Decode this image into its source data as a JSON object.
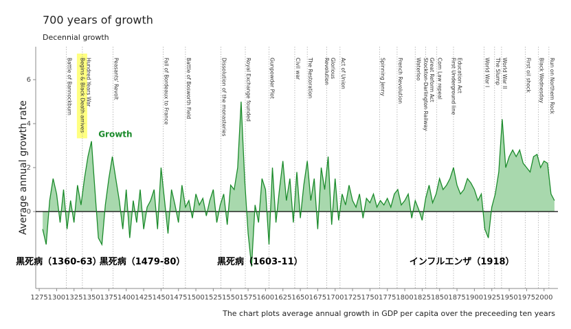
{
  "chart_data": {
    "type": "area-line",
    "title": "700 years of growth",
    "subtitle": "Decennial growth",
    "y_label": "Average annual growth rate",
    "caption": "The chart plots average annual growth in GDP per capita over the preceeding ten years",
    "xlim": [
      1270,
      2020
    ],
    "ylim": [
      -3.5,
      7.5
    ],
    "xticks": [
      1275,
      1300,
      1325,
      1350,
      1375,
      1400,
      1425,
      1450,
      1475,
      1500,
      1525,
      1550,
      1575,
      1600,
      1625,
      1650,
      1675,
      1700,
      1725,
      1750,
      1775,
      1800,
      1825,
      1850,
      1875,
      1900,
      1925,
      1950,
      1975,
      2000
    ],
    "yticks": [
      0,
      2,
      4,
      6
    ],
    "series": [
      {
        "name": "Growth",
        "color": "#1a8a2a",
        "fill": "#a8d8ad",
        "x": [
          1280,
          1285,
          1290,
          1295,
          1300,
          1305,
          1310,
          1315,
          1320,
          1325,
          1330,
          1335,
          1340,
          1345,
          1350,
          1355,
          1360,
          1365,
          1370,
          1375,
          1380,
          1385,
          1390,
          1395,
          1400,
          1405,
          1410,
          1415,
          1420,
          1425,
          1430,
          1435,
          1440,
          1445,
          1450,
          1455,
          1460,
          1465,
          1470,
          1475,
          1480,
          1485,
          1490,
          1495,
          1500,
          1505,
          1510,
          1515,
          1520,
          1525,
          1530,
          1535,
          1540,
          1545,
          1550,
          1555,
          1560,
          1565,
          1570,
          1575,
          1580,
          1585,
          1590,
          1595,
          1600,
          1605,
          1610,
          1615,
          1620,
          1625,
          1630,
          1635,
          1640,
          1645,
          1650,
          1655,
          1660,
          1665,
          1670,
          1675,
          1680,
          1685,
          1690,
          1695,
          1700,
          1705,
          1710,
          1715,
          1720,
          1725,
          1730,
          1735,
          1740,
          1745,
          1750,
          1755,
          1760,
          1765,
          1770,
          1775,
          1780,
          1785,
          1790,
          1795,
          1800,
          1805,
          1810,
          1815,
          1820,
          1825,
          1830,
          1835,
          1840,
          1845,
          1850,
          1855,
          1860,
          1865,
          1870,
          1875,
          1880,
          1885,
          1890,
          1895,
          1900,
          1905,
          1910,
          1915,
          1920,
          1925,
          1930,
          1935,
          1940,
          1945,
          1950,
          1955,
          1960,
          1965,
          1970,
          1975,
          1980,
          1985,
          1990,
          1995,
          2000,
          2005,
          2010,
          2015
        ],
        "values": [
          -0.8,
          -1.5,
          0.5,
          1.5,
          0.8,
          -0.5,
          1.0,
          -0.8,
          0.5,
          -0.5,
          1.2,
          0.3,
          1.5,
          2.5,
          3.2,
          1.0,
          -1.2,
          -1.5,
          0.3,
          1.5,
          2.5,
          1.5,
          0.5,
          -0.8,
          1.0,
          -1.2,
          0.5,
          -0.5,
          1.0,
          -0.8,
          0.2,
          0.5,
          1.0,
          -0.8,
          2.0,
          0.5,
          -1.0,
          1.0,
          0.3,
          -0.5,
          1.2,
          0.2,
          0.5,
          -0.3,
          0.8,
          0.3,
          0.6,
          -0.2,
          0.5,
          1.0,
          -0.5,
          0.3,
          0.8,
          -0.6,
          1.2,
          1.0,
          2.0,
          5.0,
          1.5,
          -1.0,
          -2.5,
          0.3,
          -0.5,
          1.5,
          1.0,
          -1.5,
          2.0,
          -0.5,
          1.0,
          2.3,
          0.5,
          1.5,
          -0.5,
          1.8,
          -0.3,
          1.2,
          2.3,
          0.5,
          1.5,
          -0.8,
          2.0,
          1.0,
          2.5,
          -0.6,
          1.5,
          -0.4,
          0.8,
          0.3,
          1.2,
          0.5,
          0.2,
          0.8,
          -0.3,
          0.6,
          0.4,
          0.8,
          0.2,
          0.5,
          0.3,
          0.6,
          0.2,
          0.8,
          1.0,
          0.3,
          0.5,
          0.8,
          -0.3,
          0.5,
          0.1,
          -0.4,
          0.6,
          1.2,
          0.4,
          0.8,
          1.5,
          1.0,
          1.2,
          1.5,
          2.0,
          1.2,
          0.8,
          1.0,
          1.5,
          1.3,
          1.0,
          0.5,
          0.8,
          -0.8,
          -1.2,
          0.2,
          0.8,
          1.8,
          4.2,
          2.0,
          2.5,
          2.8,
          2.5,
          2.8,
          2.2,
          2.0,
          1.8,
          2.5,
          2.6,
          2.0,
          2.3,
          2.2,
          0.8,
          0.5
        ]
      }
    ],
    "series_label_at": [
      1360,
      3.5
    ],
    "highlight_color": "#ffff80",
    "events": [
      {
        "year": 1314,
        "lines": [
          "Battle of Bannockburn"
        ]
      },
      {
        "year": 1337,
        "lines": [
          "Hundred Years War",
          "Begins & Black Death arrives"
        ],
        "highlight_line": 1
      },
      {
        "year": 1381,
        "lines": [
          "Peasants' Revolt"
        ]
      },
      {
        "year": 1453,
        "lines": [
          "Fall of Bordeaux to France"
        ]
      },
      {
        "year": 1485,
        "lines": [
          "Battle of Bosworth Field"
        ]
      },
      {
        "year": 1536,
        "lines": [
          "Dissolution of the monasteries"
        ]
      },
      {
        "year": 1571,
        "lines": [
          "Royal Exchange founded"
        ]
      },
      {
        "year": 1605,
        "lines": [
          "Gunpowder Plot"
        ]
      },
      {
        "year": 1642,
        "lines": [
          "Civil war"
        ]
      },
      {
        "year": 1660,
        "lines": [
          "The Restoration"
        ]
      },
      {
        "year": 1688,
        "lines": [
          "Glorious",
          "Revolution"
        ]
      },
      {
        "year": 1707,
        "lines": [
          "Act of Union"
        ]
      },
      {
        "year": 1764,
        "lines": [
          "Spinning Jenny"
        ]
      },
      {
        "year": 1789,
        "lines": [
          "French Revolution"
        ]
      },
      {
        "year": 1815,
        "lines": [
          "Waterloo"
        ]
      },
      {
        "year": 1830,
        "lines": [
          "Great Reform Act",
          "Stockton-Darlington Railway"
        ]
      },
      {
        "year": 1846,
        "lines": [
          "Corn Law repeal"
        ]
      },
      {
        "year": 1870,
        "lines": [
          "Education Act",
          "First Underground line"
        ]
      },
      {
        "year": 1914,
        "lines": [
          "World War I"
        ]
      },
      {
        "year": 1929,
        "lines": [
          "The Slump"
        ]
      },
      {
        "year": 1939,
        "lines": [
          "World War II"
        ]
      },
      {
        "year": 1973,
        "lines": [
          "First oil shock"
        ]
      },
      {
        "year": 1992,
        "lines": [
          "Black Wednesday"
        ]
      },
      {
        "year": 2007,
        "lines": [
          "Run on Northern Rock"
        ]
      }
    ],
    "annotations": [
      {
        "text": "黒死病（1360-63）",
        "at": [
          1303,
          -2.3
        ]
      },
      {
        "text": "黒死病（1479-80）",
        "at": [
          1423,
          -2.3
        ]
      },
      {
        "text": "黒死病（1603-11）",
        "at": [
          1592,
          -2.3
        ]
      },
      {
        "text": "インフルエンザ（1918）",
        "at": [
          1882,
          -2.3
        ]
      }
    ]
  }
}
